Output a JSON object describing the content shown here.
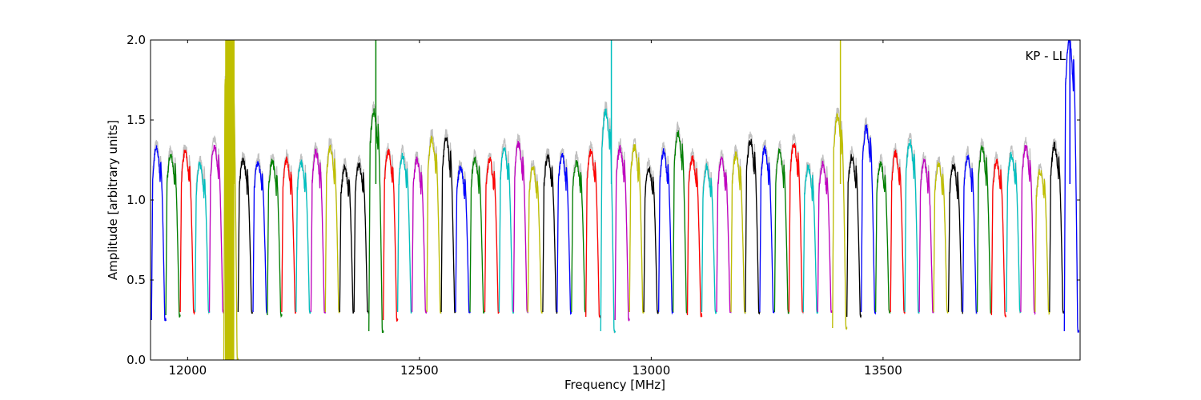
{
  "chart_data": {
    "type": "line",
    "title": "",
    "xlabel": "Frequency [MHz]",
    "ylabel": "Amplitude [arbitrary units]",
    "annotation": "KP - LL",
    "xlim": [
      11920,
      13925
    ],
    "ylim": [
      0.0,
      2.0
    ],
    "x_ticks": [
      12000,
      12500,
      13000,
      13500
    ],
    "x_tick_labels": [
      "12000",
      "12500",
      "13000",
      "13500"
    ],
    "y_ticks": [
      0.0,
      0.5,
      1.0,
      1.5,
      2.0
    ],
    "y_tick_labels": [
      "0.0",
      "0.5",
      "1.0",
      "1.5",
      "2.0"
    ],
    "grid": false,
    "legend": "none",
    "channel_width_mhz": 31.25,
    "color_cycle": [
      "#0000ff",
      "#008000",
      "#ff0000",
      "#00bfbf",
      "#bf00bf",
      "#bfbf00",
      "#000000"
    ],
    "reference_color": "#c0c0c0",
    "channels": [
      {
        "start": 11922,
        "peak": 1.32,
        "low": 0.25,
        "color": "#0000ff"
      },
      {
        "start": 11953,
        "peak": 1.28,
        "low": 0.28,
        "color": "#008000"
      },
      {
        "start": 11984,
        "peak": 1.3,
        "low": 0.3,
        "color": "#ff0000"
      },
      {
        "start": 12016,
        "peak": 1.22,
        "low": 0.3,
        "color": "#00bfbf"
      },
      {
        "start": 12047,
        "peak": 1.34,
        "low": 0.3,
        "color": "#bf00bf"
      },
      {
        "start": 12078,
        "peak": 2.0,
        "low": 0.0,
        "color": "#bfbf00",
        "noisy": true
      },
      {
        "start": 12109,
        "peak": 1.25,
        "low": 0.3,
        "color": "#000000"
      },
      {
        "start": 12141,
        "peak": 1.24,
        "low": 0.3,
        "color": "#0000ff"
      },
      {
        "start": 12172,
        "peak": 1.24,
        "low": 0.28,
        "color": "#008000"
      },
      {
        "start": 12203,
        "peak": 1.25,
        "low": 0.3,
        "color": "#ff0000"
      },
      {
        "start": 12234,
        "peak": 1.23,
        "low": 0.3,
        "color": "#00bfbf"
      },
      {
        "start": 12266,
        "peak": 1.3,
        "low": 0.3,
        "color": "#bf00bf"
      },
      {
        "start": 12297,
        "peak": 1.33,
        "low": 0.3,
        "color": "#bfbf00"
      },
      {
        "start": 12328,
        "peak": 1.2,
        "low": 0.3,
        "color": "#000000"
      },
      {
        "start": 12359,
        "peak": 1.22,
        "low": 0.3,
        "color": "#000000"
      },
      {
        "start": 12391,
        "peak": 1.55,
        "low": 0.18,
        "color": "#008000"
      },
      {
        "start": 12422,
        "peak": 1.3,
        "low": 0.25,
        "color": "#ff0000"
      },
      {
        "start": 12453,
        "peak": 1.28,
        "low": 0.3,
        "color": "#00bfbf"
      },
      {
        "start": 12484,
        "peak": 1.25,
        "low": 0.3,
        "color": "#bf00bf"
      },
      {
        "start": 12516,
        "peak": 1.38,
        "low": 0.3,
        "color": "#bfbf00"
      },
      {
        "start": 12547,
        "peak": 1.38,
        "low": 0.3,
        "color": "#000000"
      },
      {
        "start": 12578,
        "peak": 1.2,
        "low": 0.3,
        "color": "#0000ff"
      },
      {
        "start": 12609,
        "peak": 1.26,
        "low": 0.3,
        "color": "#008000"
      },
      {
        "start": 12641,
        "peak": 1.25,
        "low": 0.3,
        "color": "#ff0000"
      },
      {
        "start": 12672,
        "peak": 1.32,
        "low": 0.3,
        "color": "#00bfbf"
      },
      {
        "start": 12703,
        "peak": 1.35,
        "low": 0.3,
        "color": "#bf00bf"
      },
      {
        "start": 12734,
        "peak": 1.2,
        "low": 0.3,
        "color": "#bfbf00"
      },
      {
        "start": 12766,
        "peak": 1.27,
        "low": 0.3,
        "color": "#000000"
      },
      {
        "start": 12797,
        "peak": 1.28,
        "low": 0.3,
        "color": "#0000ff"
      },
      {
        "start": 12828,
        "peak": 1.24,
        "low": 0.3,
        "color": "#008000"
      },
      {
        "start": 12859,
        "peak": 1.3,
        "low": 0.27,
        "color": "#ff0000"
      },
      {
        "start": 12891,
        "peak": 1.55,
        "low": 0.18,
        "color": "#00bfbf"
      },
      {
        "start": 12922,
        "peak": 1.32,
        "low": 0.25,
        "color": "#bf00bf"
      },
      {
        "start": 12953,
        "peak": 1.33,
        "low": 0.3,
        "color": "#bfbf00"
      },
      {
        "start": 12984,
        "peak": 1.2,
        "low": 0.3,
        "color": "#000000"
      },
      {
        "start": 13016,
        "peak": 1.3,
        "low": 0.3,
        "color": "#0000ff"
      },
      {
        "start": 13047,
        "peak": 1.42,
        "low": 0.3,
        "color": "#008000"
      },
      {
        "start": 13078,
        "peak": 1.26,
        "low": 0.28,
        "color": "#ff0000"
      },
      {
        "start": 13109,
        "peak": 1.2,
        "low": 0.3,
        "color": "#00bfbf"
      },
      {
        "start": 13141,
        "peak": 1.25,
        "low": 0.3,
        "color": "#bf00bf"
      },
      {
        "start": 13172,
        "peak": 1.28,
        "low": 0.3,
        "color": "#bfbf00"
      },
      {
        "start": 13203,
        "peak": 1.37,
        "low": 0.3,
        "color": "#000000"
      },
      {
        "start": 13234,
        "peak": 1.32,
        "low": 0.3,
        "color": "#0000ff"
      },
      {
        "start": 13266,
        "peak": 1.3,
        "low": 0.3,
        "color": "#008000"
      },
      {
        "start": 13297,
        "peak": 1.35,
        "low": 0.3,
        "color": "#ff0000"
      },
      {
        "start": 13328,
        "peak": 1.2,
        "low": 0.3,
        "color": "#00bfbf"
      },
      {
        "start": 13359,
        "peak": 1.22,
        "low": 0.3,
        "color": "#bf00bf"
      },
      {
        "start": 13391,
        "peak": 1.52,
        "low": 0.2,
        "color": "#bfbf00"
      },
      {
        "start": 13422,
        "peak": 1.27,
        "low": 0.27,
        "color": "#000000"
      },
      {
        "start": 13453,
        "peak": 1.45,
        "low": 0.3,
        "color": "#0000ff"
      },
      {
        "start": 13484,
        "peak": 1.23,
        "low": 0.3,
        "color": "#008000"
      },
      {
        "start": 13516,
        "peak": 1.29,
        "low": 0.3,
        "color": "#ff0000"
      },
      {
        "start": 13547,
        "peak": 1.36,
        "low": 0.3,
        "color": "#00bfbf"
      },
      {
        "start": 13578,
        "peak": 1.24,
        "low": 0.3,
        "color": "#bf00bf"
      },
      {
        "start": 13609,
        "peak": 1.22,
        "low": 0.3,
        "color": "#bfbf00"
      },
      {
        "start": 13641,
        "peak": 1.22,
        "low": 0.3,
        "color": "#000000"
      },
      {
        "start": 13672,
        "peak": 1.27,
        "low": 0.3,
        "color": "#0000ff"
      },
      {
        "start": 13703,
        "peak": 1.32,
        "low": 0.3,
        "color": "#008000"
      },
      {
        "start": 13734,
        "peak": 1.24,
        "low": 0.28,
        "color": "#ff0000"
      },
      {
        "start": 13766,
        "peak": 1.28,
        "low": 0.3,
        "color": "#00bfbf"
      },
      {
        "start": 13797,
        "peak": 1.33,
        "low": 0.3,
        "color": "#bf00bf"
      },
      {
        "start": 13828,
        "peak": 1.18,
        "low": 0.3,
        "color": "#bfbf00"
      },
      {
        "start": 13859,
        "peak": 1.34,
        "low": 0.3,
        "color": "#000000"
      },
      {
        "start": 13891,
        "peak": 2.0,
        "low": 0.18,
        "color": "#0000ff"
      }
    ],
    "spikes": [
      {
        "x": 12100,
        "y": 2.0,
        "color": "#bfbf00"
      },
      {
        "x": 12406,
        "y": 2.0,
        "color": "#008000"
      },
      {
        "x": 12914,
        "y": 2.0,
        "color": "#00bfbf"
      },
      {
        "x": 13408,
        "y": 2.0,
        "color": "#bfbf00"
      },
      {
        "x": 13903,
        "y": 2.0,
        "color": "#0000ff"
      }
    ]
  }
}
